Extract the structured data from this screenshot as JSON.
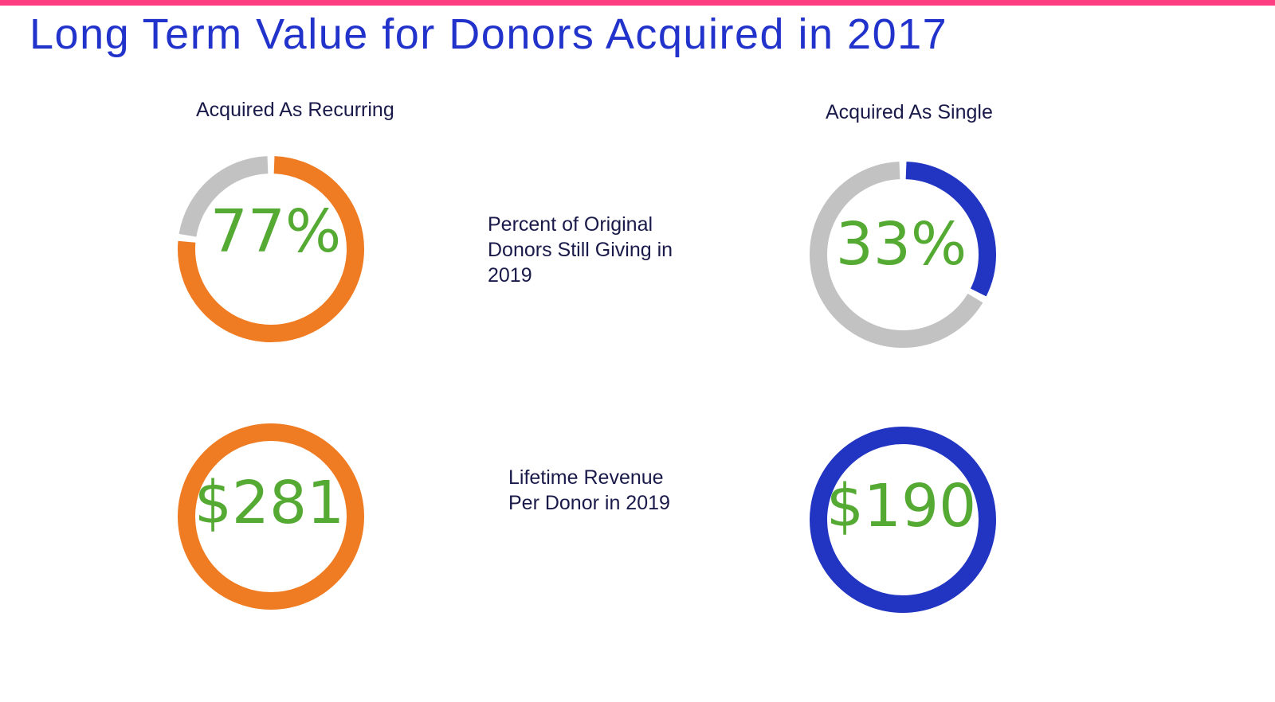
{
  "title": "Long Term Value for Donors Acquired in 2017",
  "colors": {
    "top_bar": "#ff3d80",
    "title": "#2233cc",
    "recurring": "#ef7b22",
    "single": "#2235c2",
    "track": "#c2c2c2",
    "value_text": "#55aa33"
  },
  "columns": {
    "recurring_label": "Acquired As Recurring",
    "single_label": "Acquired As Single"
  },
  "rows": {
    "retention_label": [
      "Percent of Original",
      "Donors Still Giving in",
      "2019"
    ],
    "revenue_label": [
      "Lifetime Revenue",
      "Per Donor in 2019"
    ]
  },
  "chart_data": [
    {
      "type": "pie",
      "variant": "donut",
      "group": "Acquired As Recurring",
      "metric": "Percent of Original Donors Still Giving in 2019",
      "value": 77,
      "display": "77%"
    },
    {
      "type": "pie",
      "variant": "donut",
      "group": "Acquired As Single",
      "metric": "Percent of Original Donors Still Giving in 2019",
      "value": 33,
      "display": "33%"
    },
    {
      "type": "pie",
      "variant": "donut",
      "group": "Acquired As Recurring",
      "metric": "Lifetime Revenue Per Donor in 2019",
      "value": 281,
      "display": "$281"
    },
    {
      "type": "pie",
      "variant": "donut",
      "group": "Acquired As Single",
      "metric": "Lifetime Revenue Per Donor in 2019",
      "value": 190,
      "display": "$190"
    }
  ]
}
